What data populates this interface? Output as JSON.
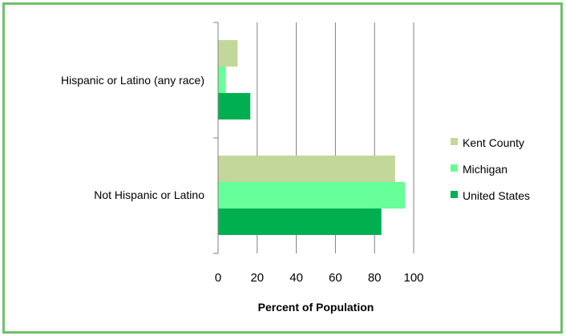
{
  "chart_data": {
    "type": "bar",
    "orientation": "horizontal",
    "categories": [
      "Hispanic or Latino (any race)",
      "Not Hispanic or Latino"
    ],
    "series": [
      {
        "name": "Kent County",
        "values": [
          10,
          90.5
        ],
        "color": "#c4d79b"
      },
      {
        "name": "Michigan",
        "values": [
          4,
          95.5
        ],
        "color": "#66ff99"
      },
      {
        "name": "United States",
        "values": [
          16.5,
          83.5
        ],
        "color": "#00b050"
      }
    ],
    "xlabel": "Percent of Population",
    "ylabel": "",
    "xlim": [
      0,
      100
    ],
    "xticks": [
      "0",
      "20",
      "40",
      "60",
      "80",
      "100"
    ],
    "grid": true,
    "legend_position": "right"
  },
  "colors": {
    "border": "#6ec06e",
    "gridline": "#808080"
  }
}
